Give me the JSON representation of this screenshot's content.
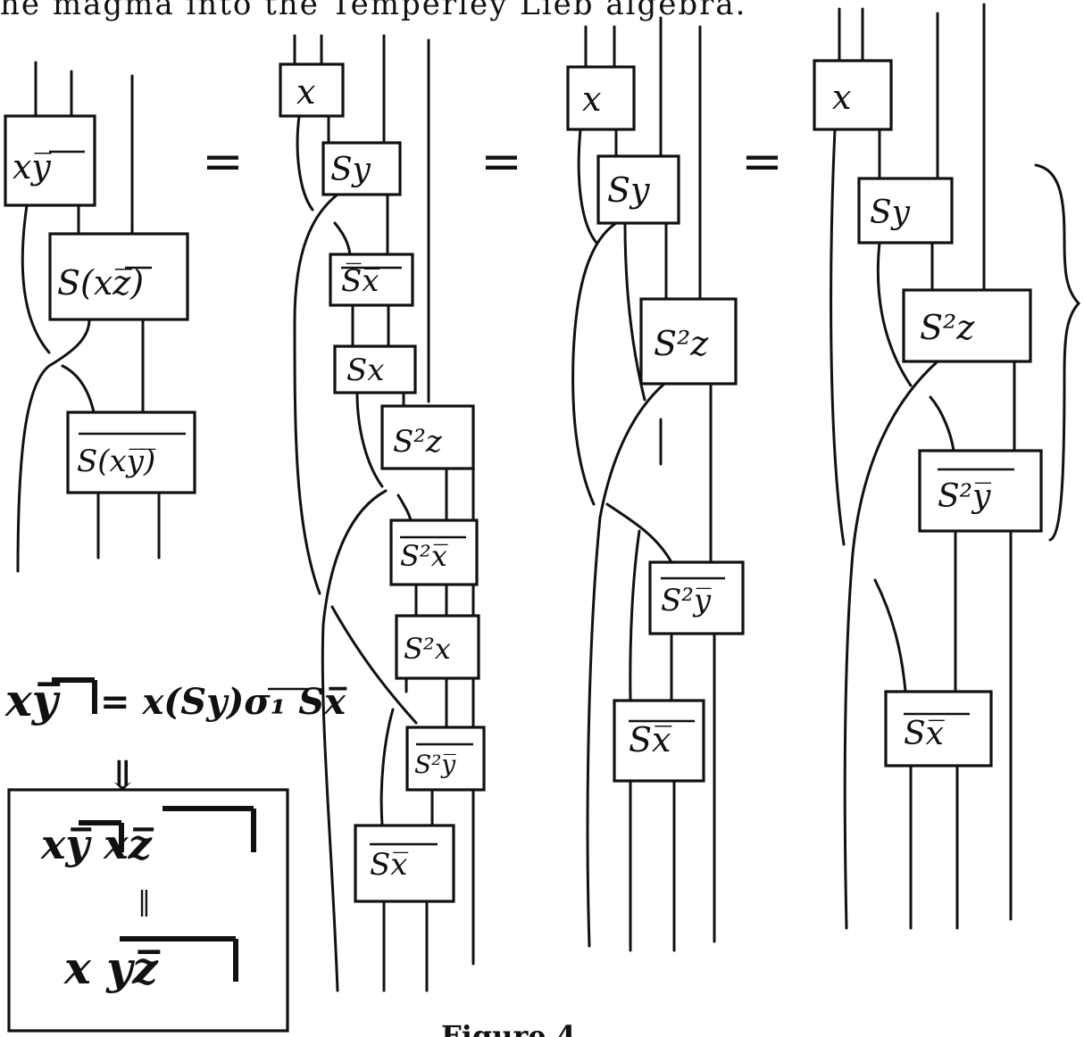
{
  "header_text": "he magma into the Temperley Lieb algebra.",
  "caption": "Figure 4",
  "equals_sign": "=",
  "diagrams": {
    "d1": {
      "boxes": [
        "xy̅",
        "S(xz̅)",
        "S(xy̅)̅"
      ]
    },
    "d2": {
      "boxes": [
        "x",
        "Sy",
        "S̅x̅",
        "Sx",
        "S²z",
        "S²x̅",
        "S²x",
        "S²y̅",
        "Sx̅"
      ]
    },
    "d3": {
      "boxes": [
        "x",
        "Sy",
        "S²z",
        "S²y̅",
        "Sx̅"
      ]
    },
    "d4": {
      "boxes": [
        "x",
        "Sy",
        "S²z",
        "S²y̅",
        "Sx̅"
      ]
    }
  },
  "formula": {
    "lhs": "xy̅",
    "rhs": "= x(Sy)σ₁ Sx̅",
    "arrow": "⇓"
  },
  "boxed_identity": {
    "top": "xy̅  xz̅",
    "middle": "‖",
    "bottom": "x  yz̅"
  }
}
